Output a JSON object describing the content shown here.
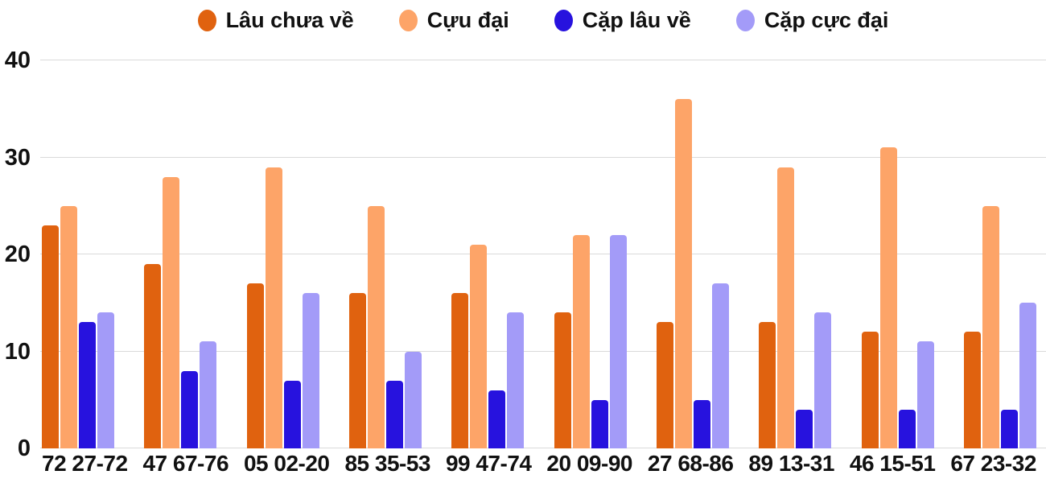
{
  "chart_data": {
    "type": "bar",
    "title": "",
    "xlabel": "",
    "ylabel": "",
    "categories": [
      "72 27-72",
      "47 67-76",
      "05 02-20",
      "85 35-53",
      "99 47-74",
      "20 09-90",
      "27 68-86",
      "89 13-31",
      "46 15-51",
      "67 23-32"
    ],
    "series": [
      {
        "name": "Lâu chưa về",
        "color": "#E0620F",
        "values": [
          23,
          19,
          17,
          16,
          16,
          14,
          13,
          13,
          12,
          12
        ]
      },
      {
        "name": "Cựu đại",
        "color": "#FDA468",
        "values": [
          25,
          28,
          29,
          25,
          21,
          22,
          36,
          29,
          31,
          25
        ]
      },
      {
        "name": "Cặp lâu về",
        "color": "#2712DE",
        "values": [
          13,
          8,
          7,
          7,
          6,
          5,
          5,
          4,
          4,
          4
        ]
      },
      {
        "name": "Cặp cực đại",
        "color": "#A39BF8",
        "values": [
          14,
          11,
          16,
          10,
          14,
          22,
          17,
          14,
          11,
          15
        ]
      }
    ],
    "yticks": [
      0,
      10,
      20,
      30,
      40
    ],
    "ylim": [
      0,
      40
    ],
    "grid": true,
    "legend_position": "top"
  },
  "colors": {
    "background": "#ffffff",
    "gridline": "#dadada",
    "axis_text": "#111111"
  }
}
